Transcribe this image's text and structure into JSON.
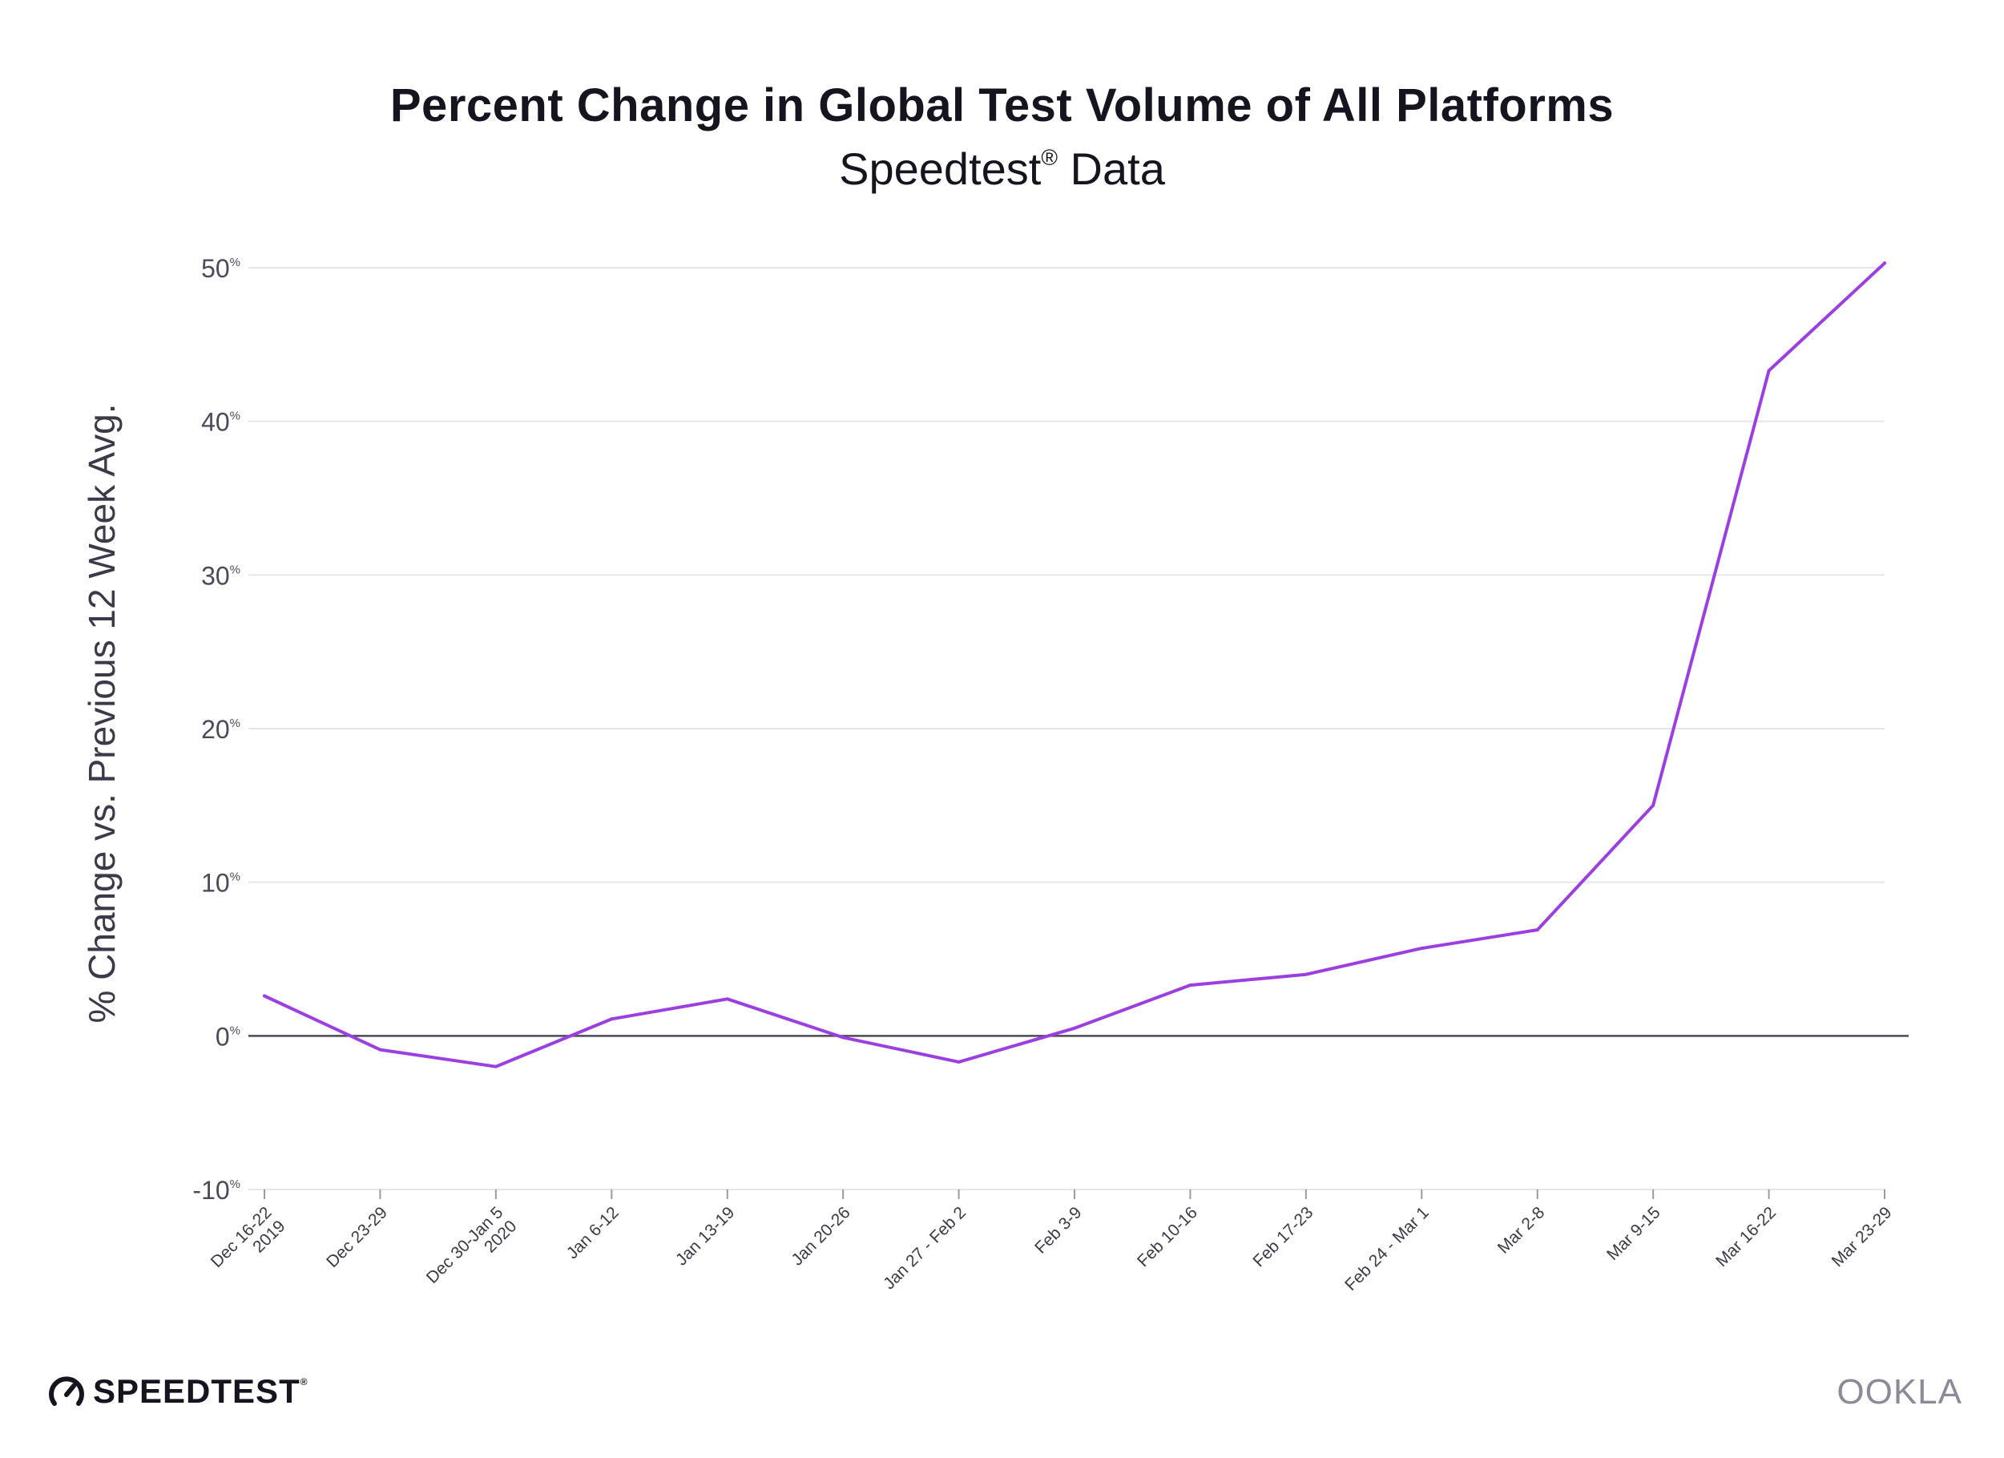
{
  "header": {
    "title": "Percent Change in Global Test Volume of All Platforms",
    "subtitle_main": "Speedtest",
    "subtitle_mark": "®",
    "subtitle_rest": " Data"
  },
  "chart_data": {
    "type": "line",
    "title": "Percent Change in Global Test Volume of All Platforms",
    "subtitle": "Speedtest® Data",
    "ylabel": "% Change vs. Previous 12 Week Avg.",
    "xlabel": "",
    "ylim": [
      -10,
      50
    ],
    "yticks": [
      {
        "value": 50,
        "label": "50",
        "unit": "%"
      },
      {
        "value": 40,
        "label": "40",
        "unit": "%"
      },
      {
        "value": 30,
        "label": "30",
        "unit": "%"
      },
      {
        "value": 20,
        "label": "20",
        "unit": "%"
      },
      {
        "value": 10,
        "label": "10",
        "unit": "%"
      },
      {
        "value": 0,
        "label": "0",
        "unit": "%"
      },
      {
        "value": -10,
        "label": "-10",
        "unit": "%"
      }
    ],
    "categories": [
      [
        "Dec 16-22",
        "2019"
      ],
      [
        "Dec 23-29"
      ],
      [
        "Dec 30-Jan 5",
        "2020"
      ],
      [
        "Jan 6-12"
      ],
      [
        "Jan 13-19"
      ],
      [
        "Jan 20-26"
      ],
      [
        "Jan 27 - Feb 2"
      ],
      [
        "Feb 3-9"
      ],
      [
        "Feb 10-16"
      ],
      [
        "Feb 17-23"
      ],
      [
        "Feb 24 - Mar 1"
      ],
      [
        "Mar 2-8"
      ],
      [
        "Mar 9-15"
      ],
      [
        "Mar 16-22"
      ],
      [
        "Mar 23-29"
      ]
    ],
    "series": [
      {
        "values": [
          2.6,
          -0.9,
          -2.0,
          1.1,
          2.4,
          -0.1,
          -1.7,
          0.5,
          3.3,
          4.0,
          5.7,
          6.9,
          15.0,
          43.3,
          50.3
        ],
        "color": "#9b3fe0"
      }
    ],
    "grid": true,
    "zero_line_color": "#4a4a58",
    "grid_color": "#e6e6ea"
  },
  "footer": {
    "brand_left": "SPEEDTEST",
    "brand_left_mark": "®",
    "brand_right": "OOKLA"
  }
}
